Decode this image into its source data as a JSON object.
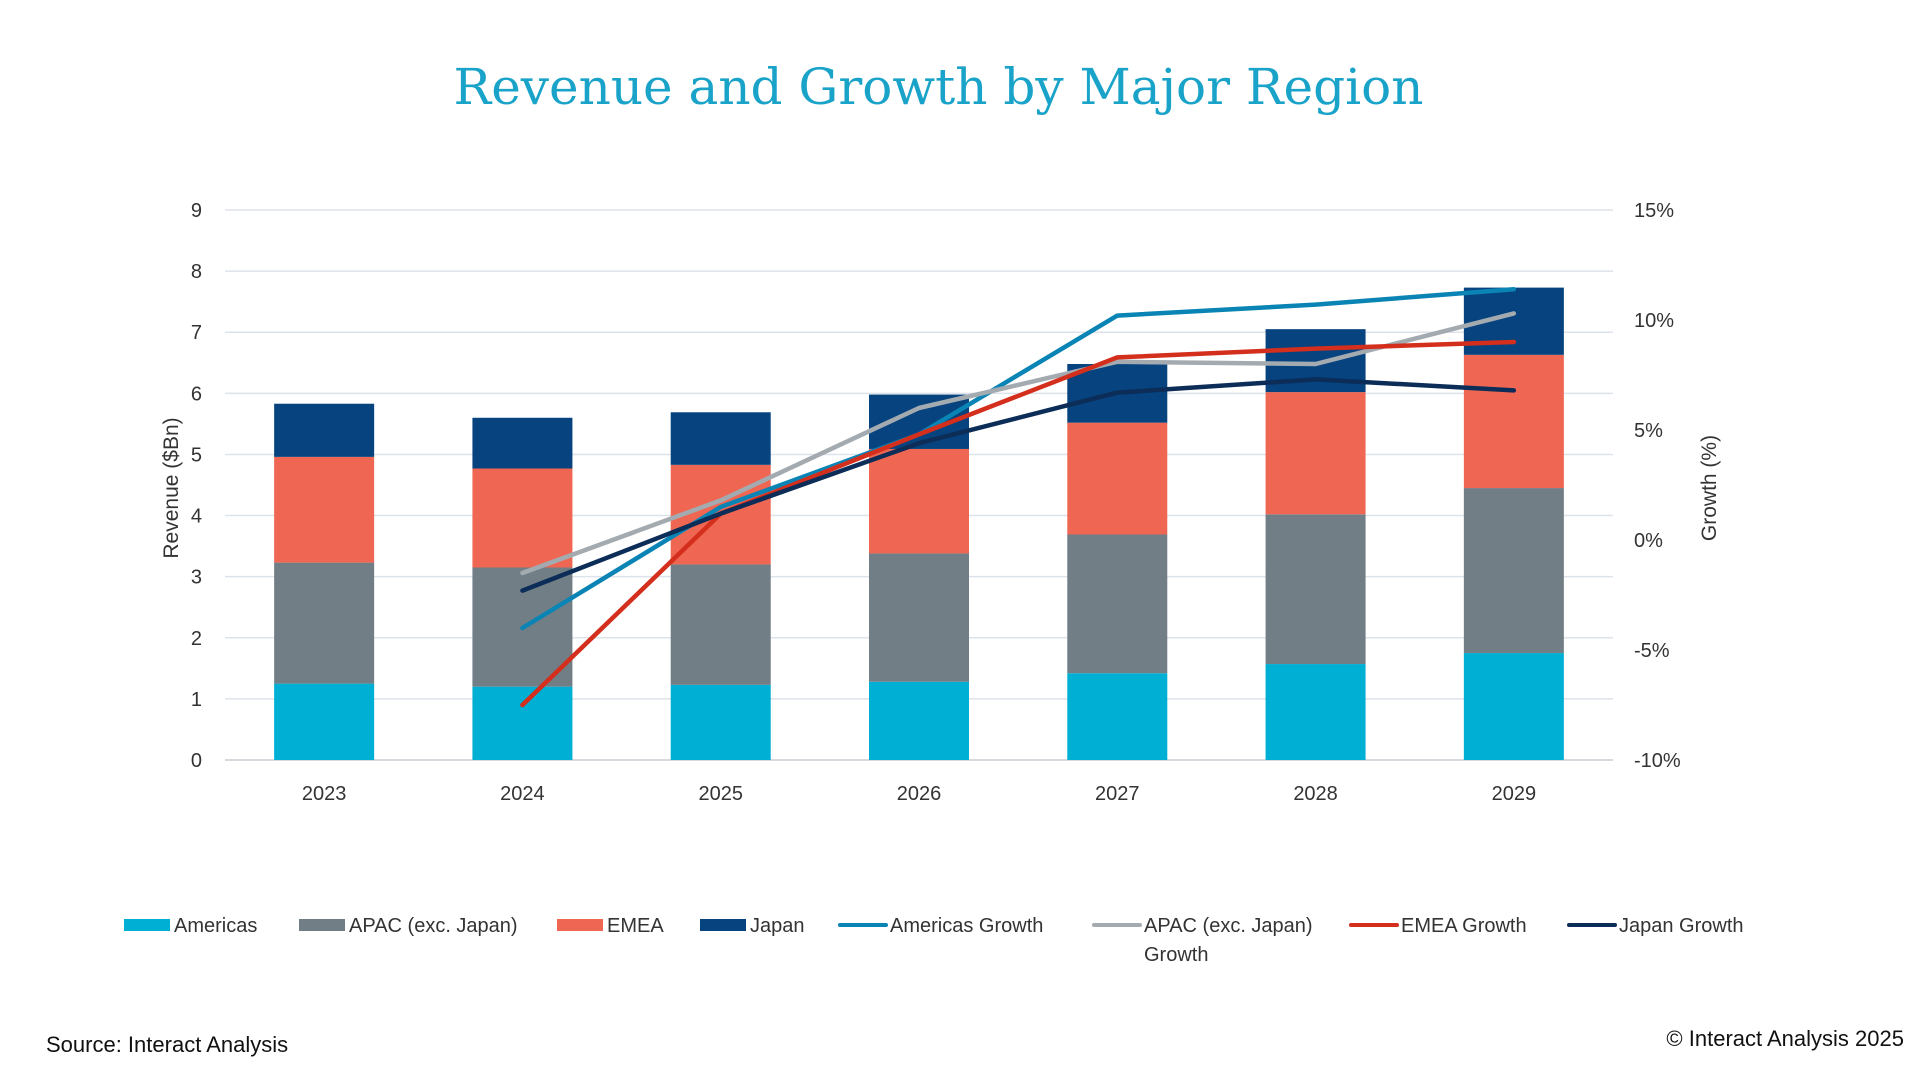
{
  "chart_data": {
    "type": "bar",
    "subtype": "stacked-bar-with-lines",
    "title": "Revenue and Growth by Major Region",
    "ylabel": "Revenue ($Bn)",
    "y2label": "Growth (%)",
    "categories": [
      "2023",
      "2024",
      "2025",
      "2026",
      "2027",
      "2028",
      "2029"
    ],
    "ylim": [
      0,
      9
    ],
    "yticks": [
      "0",
      "1",
      "2",
      "3",
      "4",
      "5",
      "6",
      "7",
      "8",
      "9"
    ],
    "y2lim": [
      -10,
      15
    ],
    "y2ticks": [
      "-10%",
      "-5%",
      "0%",
      "5%",
      "10%",
      "15%"
    ],
    "grid": true,
    "legend_position": "bottom",
    "bar_series": [
      {
        "name": "Americas",
        "color": "#00afd4",
        "values": [
          1.25,
          1.2,
          1.23,
          1.28,
          1.42,
          1.57,
          1.75
        ]
      },
      {
        "name": "APAC (exc. Japan)",
        "color": "#717e86",
        "values": [
          1.98,
          1.95,
          1.97,
          2.1,
          2.27,
          2.45,
          2.7
        ]
      },
      {
        "name": "EMEA",
        "color": "#ef6753",
        "values": [
          1.73,
          1.62,
          1.63,
          1.71,
          1.83,
          2.0,
          2.18
        ]
      },
      {
        "name": "Japan",
        "color": "#06437f",
        "values": [
          0.87,
          0.83,
          0.86,
          0.89,
          0.96,
          1.03,
          1.1
        ]
      }
    ],
    "line_series": [
      {
        "name": "Americas Growth",
        "color": "#0a84b4",
        "values": [
          null,
          -4.0,
          1.5,
          4.8,
          10.2,
          10.7,
          11.4
        ]
      },
      {
        "name": "APAC (exc. Japan) Growth",
        "color": "#a3abb1",
        "values": [
          null,
          -1.5,
          1.8,
          6.0,
          8.1,
          8.0,
          10.3
        ]
      },
      {
        "name": "EMEA Growth",
        "color": "#d42e1c",
        "values": [
          null,
          -7.5,
          1.2,
          4.8,
          8.3,
          8.7,
          9.0
        ]
      },
      {
        "name": "Japan Growth",
        "color": "#0c2d57",
        "values": [
          null,
          -2.3,
          1.2,
          4.4,
          6.7,
          7.3,
          6.8
        ]
      }
    ]
  },
  "legend": {
    "items": [
      {
        "label": "Americas"
      },
      {
        "label": "APAC (exc. Japan)"
      },
      {
        "label": "EMEA"
      },
      {
        "label": "Japan"
      },
      {
        "label": "Americas Growth"
      },
      {
        "label": "APAC (exc. Japan)",
        "label_line2": "Growth"
      },
      {
        "label": "EMEA Growth"
      },
      {
        "label": "Japan Growth"
      }
    ]
  },
  "footer": {
    "source": "Source: Interact Analysis",
    "copyright": "© Interact Analysis 2025"
  }
}
